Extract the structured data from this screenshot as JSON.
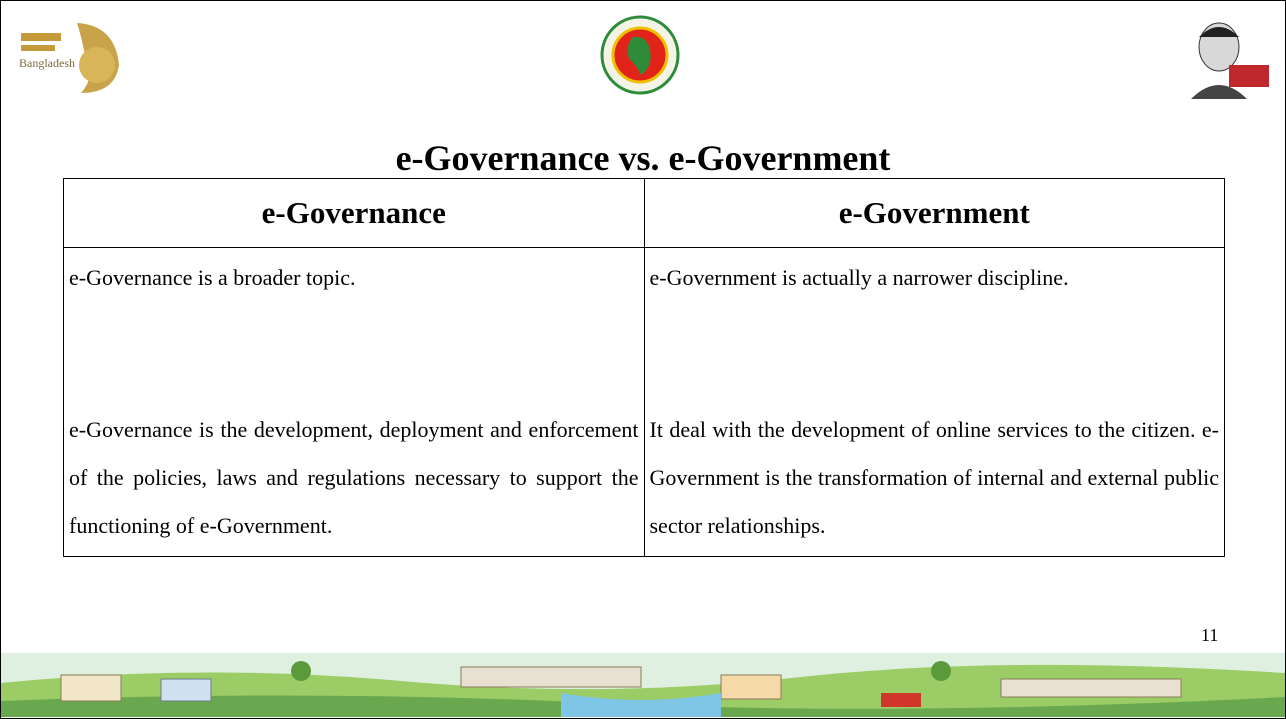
{
  "header": {
    "logo_text": "Bangladesh",
    "title": "e-Governance vs. e-Government"
  },
  "table": {
    "columns": [
      "e-Governance",
      "e-Government"
    ],
    "rows": [
      [
        "e-Governance is a broader topic.",
        "e-Government is actually a narrower discipline."
      ],
      [
        "e-Governance is the development, deployment and enforcement of the policies, laws and regulations necessary to support the functioning of e-Government.",
        "It deal with the development of online services to the citizen. e-Government is the transformation of internal and external public sector relationships."
      ]
    ]
  },
  "footer": {
    "page_number": "11"
  }
}
